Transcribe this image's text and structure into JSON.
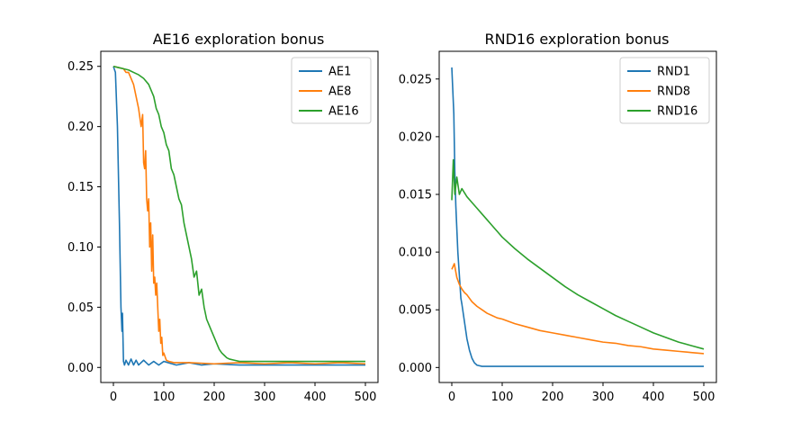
{
  "chart_data": [
    {
      "type": "line",
      "title": "AE16 exploration bonus",
      "xlabel": "",
      "ylabel": "",
      "xlim": [
        -25,
        525
      ],
      "ylim": [
        -0.0125,
        0.2625
      ],
      "xticks": [
        0,
        100,
        200,
        300,
        400,
        500
      ],
      "yticks": [
        0.0,
        0.05,
        0.1,
        0.15,
        0.2,
        0.25
      ],
      "xtick_labels": [
        "0",
        "100",
        "200",
        "300",
        "400",
        "500"
      ],
      "ytick_labels": [
        "0.00",
        "0.05",
        "0.10",
        "0.15",
        "0.20",
        "0.25"
      ],
      "legend_position": "top-right",
      "grid": false,
      "series": [
        {
          "name": "AE1",
          "color": "#1f77b4",
          "x": [
            0,
            4,
            8,
            12,
            15,
            17,
            18,
            19,
            20,
            22,
            25,
            30,
            35,
            40,
            45,
            50,
            60,
            70,
            80,
            90,
            100,
            125,
            150,
            175,
            200,
            250,
            300,
            350,
            400,
            450,
            500
          ],
          "y": [
            0.25,
            0.245,
            0.2,
            0.12,
            0.05,
            0.03,
            0.045,
            0.025,
            0.005,
            0.002,
            0.006,
            0.002,
            0.007,
            0.002,
            0.006,
            0.002,
            0.006,
            0.002,
            0.005,
            0.002,
            0.005,
            0.002,
            0.004,
            0.002,
            0.003,
            0.002,
            0.002,
            0.002,
            0.002,
            0.002,
            0.002
          ]
        },
        {
          "name": "AE8",
          "color": "#ff7f0e",
          "x": [
            0,
            10,
            20,
            25,
            30,
            35,
            40,
            45,
            50,
            55,
            58,
            60,
            62,
            64,
            66,
            68,
            70,
            72,
            74,
            76,
            78,
            80,
            82,
            84,
            86,
            88,
            90,
            92,
            94,
            96,
            98,
            100,
            105,
            110,
            120,
            130,
            150,
            200,
            250,
            300,
            350,
            400,
            450,
            500
          ],
          "y": [
            0.25,
            0.249,
            0.248,
            0.245,
            0.245,
            0.24,
            0.235,
            0.225,
            0.215,
            0.2,
            0.21,
            0.17,
            0.165,
            0.18,
            0.14,
            0.13,
            0.14,
            0.1,
            0.12,
            0.08,
            0.11,
            0.07,
            0.075,
            0.06,
            0.07,
            0.05,
            0.03,
            0.04,
            0.02,
            0.025,
            0.01,
            0.012,
            0.006,
            0.005,
            0.004,
            0.004,
            0.004,
            0.003,
            0.004,
            0.003,
            0.004,
            0.003,
            0.004,
            0.003
          ]
        },
        {
          "name": "AE16",
          "color": "#2ca02c",
          "x": [
            0,
            10,
            20,
            30,
            40,
            50,
            60,
            70,
            80,
            85,
            90,
            95,
            100,
            105,
            110,
            115,
            120,
            125,
            130,
            135,
            140,
            145,
            150,
            155,
            160,
            165,
            170,
            175,
            180,
            185,
            190,
            195,
            200,
            205,
            210,
            215,
            220,
            225,
            230,
            240,
            250,
            275,
            300,
            325,
            350,
            375,
            400,
            425,
            450,
            475,
            500
          ],
          "y": [
            0.25,
            0.249,
            0.248,
            0.247,
            0.245,
            0.243,
            0.24,
            0.235,
            0.225,
            0.215,
            0.21,
            0.2,
            0.195,
            0.185,
            0.18,
            0.165,
            0.16,
            0.15,
            0.14,
            0.135,
            0.12,
            0.11,
            0.1,
            0.09,
            0.075,
            0.08,
            0.06,
            0.065,
            0.05,
            0.04,
            0.035,
            0.03,
            0.025,
            0.02,
            0.015,
            0.012,
            0.01,
            0.008,
            0.007,
            0.006,
            0.005,
            0.005,
            0.005,
            0.005,
            0.005,
            0.005,
            0.005,
            0.005,
            0.005,
            0.005,
            0.005
          ]
        }
      ]
    },
    {
      "type": "line",
      "title": "RND16 exploration bonus",
      "xlabel": "",
      "ylabel": "",
      "xlim": [
        -25,
        525
      ],
      "ylim": [
        -0.0013,
        0.0274
      ],
      "xticks": [
        0,
        100,
        200,
        300,
        400,
        500
      ],
      "yticks": [
        0.0,
        0.005,
        0.01,
        0.015,
        0.02,
        0.025
      ],
      "xtick_labels": [
        "0",
        "100",
        "200",
        "300",
        "400",
        "500"
      ],
      "ytick_labels": [
        "0.000",
        "0.005",
        "0.010",
        "0.015",
        "0.020",
        "0.025"
      ],
      "legend_position": "top-right",
      "grid": false,
      "series": [
        {
          "name": "RND1",
          "color": "#1f77b4",
          "x": [
            0,
            2,
            4,
            6,
            8,
            10,
            12,
            15,
            18,
            20,
            25,
            30,
            35,
            40,
            45,
            50,
            60,
            70,
            80,
            100,
            150,
            200,
            250,
            300,
            350,
            400,
            450,
            500
          ],
          "y": [
            0.026,
            0.024,
            0.022,
            0.017,
            0.014,
            0.012,
            0.01,
            0.008,
            0.006,
            0.0055,
            0.004,
            0.0025,
            0.0015,
            0.0008,
            0.0004,
            0.0002,
            0.0001,
            0.0001,
            0.0001,
            0.0001,
            0.0001,
            0.0001,
            0.0001,
            0.0001,
            0.0001,
            0.0001,
            0.0001,
            0.0001
          ]
        },
        {
          "name": "RND8",
          "color": "#ff7f0e",
          "x": [
            0,
            5,
            10,
            15,
            20,
            25,
            30,
            40,
            50,
            60,
            70,
            80,
            90,
            100,
            125,
            150,
            175,
            200,
            225,
            250,
            275,
            300,
            325,
            350,
            375,
            400,
            425,
            450,
            475,
            500
          ],
          "y": [
            0.0085,
            0.009,
            0.0078,
            0.0072,
            0.0068,
            0.0065,
            0.0063,
            0.0057,
            0.0053,
            0.005,
            0.0047,
            0.0045,
            0.0043,
            0.0042,
            0.0038,
            0.0035,
            0.0032,
            0.003,
            0.0028,
            0.0026,
            0.0024,
            0.0022,
            0.0021,
            0.0019,
            0.0018,
            0.0016,
            0.0015,
            0.0014,
            0.0013,
            0.0012
          ]
        },
        {
          "name": "RND16",
          "color": "#2ca02c",
          "x": [
            0,
            3,
            6,
            10,
            15,
            20,
            30,
            40,
            50,
            60,
            70,
            80,
            90,
            100,
            125,
            150,
            175,
            200,
            225,
            250,
            275,
            300,
            325,
            350,
            375,
            400,
            425,
            450,
            475,
            500
          ],
          "y": [
            0.0145,
            0.018,
            0.015,
            0.0165,
            0.015,
            0.0155,
            0.0148,
            0.0143,
            0.0138,
            0.0133,
            0.0128,
            0.0123,
            0.0118,
            0.0113,
            0.0103,
            0.0094,
            0.0086,
            0.0078,
            0.007,
            0.0063,
            0.0057,
            0.0051,
            0.0045,
            0.004,
            0.0035,
            0.003,
            0.0026,
            0.0022,
            0.0019,
            0.0016
          ]
        }
      ]
    }
  ]
}
